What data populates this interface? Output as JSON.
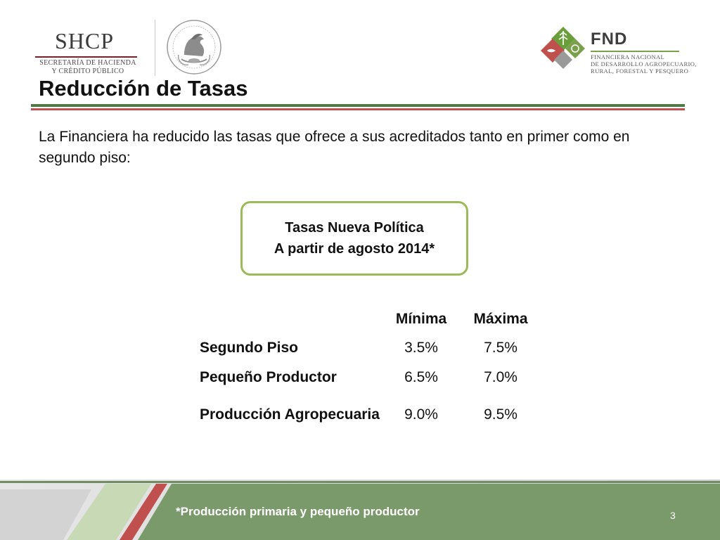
{
  "header": {
    "shcp": {
      "name": "SHCP",
      "line1": "SECRETARÍA DE HACIENDA",
      "line2": "Y CRÉDITO PÚBLICO"
    },
    "fnd": {
      "name": "FND",
      "line1": "FINANCIERA NACIONAL",
      "line2": "DE DESARROLLO AGROPECUARIO,",
      "line3": "RURAL, FORESTAL Y PESQUERO"
    }
  },
  "title": "Reducción de Tasas",
  "intro": "La Financiera ha reducido las tasas que ofrece a sus acreditados tanto en primer como en segundo piso:",
  "callout": {
    "line1": "Tasas Nueva Política",
    "line2": "A partir de agosto 2014*"
  },
  "table": {
    "headers": [
      "",
      "Mínima",
      "Máxima"
    ],
    "rows": [
      {
        "label": "Segundo Piso",
        "min": "3.5%",
        "max": "7.5%"
      },
      {
        "label": "Pequeño Productor",
        "min": "6.5%",
        "max": "7.0%"
      },
      {
        "label": "Producción Agropecuaria",
        "min": "9.0%",
        "max": "9.5%"
      }
    ]
  },
  "footer": {
    "note": "*Producción primaria y pequeño productor",
    "page": "3"
  },
  "colors": {
    "green": "#4f7a45",
    "red": "#c0504d",
    "light_green": "#9bbb59",
    "footer_green": "#7a9a6c"
  }
}
